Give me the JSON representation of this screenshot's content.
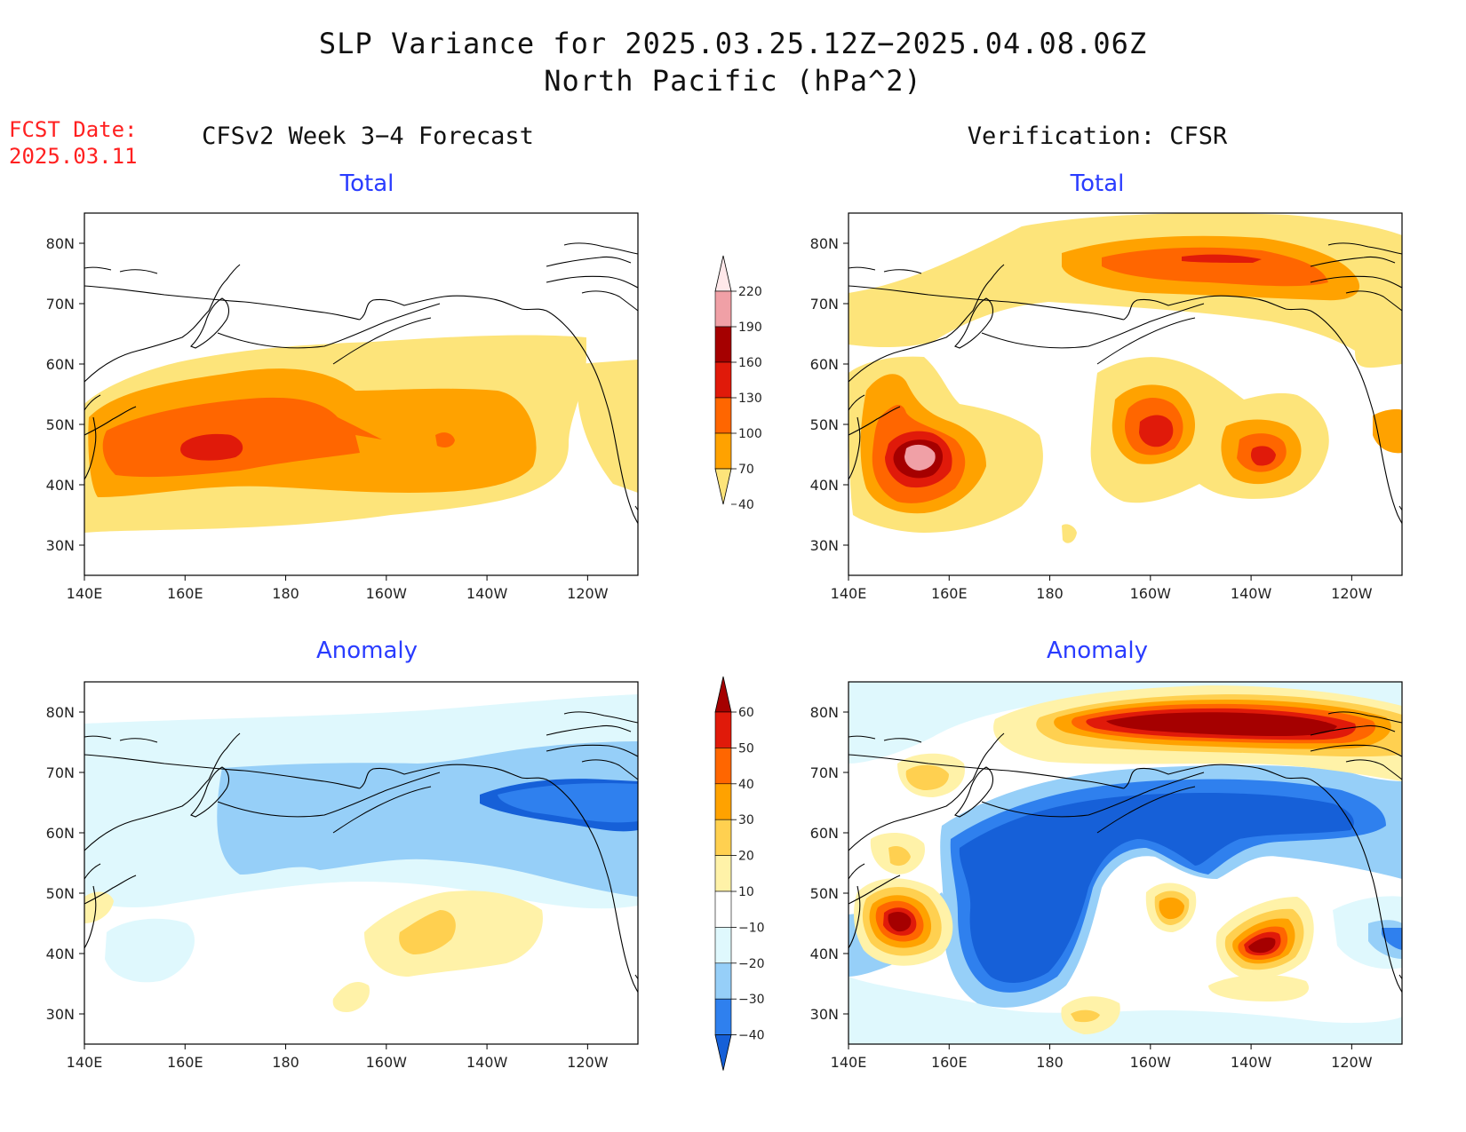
{
  "title": {
    "line1": "SLP Variance for 2025.03.25.12Z−2025.04.08.06Z",
    "line2": "North Pacific (hPa^2)"
  },
  "fcst_date": {
    "label": "FCST Date:",
    "value": "2025.03.11"
  },
  "columns": {
    "forecast": "CFSv2 Week 3−4 Forecast",
    "verification": "Verification: CFSR"
  },
  "panels": {
    "total": "Total",
    "anomaly": "Anomaly"
  },
  "axes": {
    "lat_labels": [
      "80N",
      "70N",
      "60N",
      "50N",
      "40N",
      "30N"
    ],
    "lon_labels": [
      "140E",
      "160E",
      "180",
      "160W",
      "140W",
      "120W"
    ],
    "lat_range": [
      25,
      85
    ],
    "lon_range": [
      140,
      250
    ]
  },
  "colorbars": {
    "total": {
      "levels": [
        "40",
        "70",
        "100",
        "130",
        "160",
        "190",
        "220"
      ],
      "colors": [
        "#fde47a",
        "#ffa200",
        "#ff6600",
        "#e01a0a",
        "#a50000",
        "#f0a0a6",
        "#ffe8ea"
      ]
    },
    "anomaly": {
      "levels": [
        "−40",
        "−30",
        "−20",
        "−10",
        "10",
        "20",
        "30",
        "40",
        "50",
        "60"
      ],
      "colors": [
        "#1660d8",
        "#2f80ee",
        "#96cff8",
        "#dff8fd",
        "#ffffff",
        "#fff2a8",
        "#ffd050",
        "#ffa200",
        "#ff6600",
        "#e01a0a",
        "#a50000"
      ]
    }
  },
  "colors": {
    "title": "#111111",
    "fcst": "#ff2020",
    "panel_heading": "#2a3cff",
    "coast": "#000000"
  }
}
